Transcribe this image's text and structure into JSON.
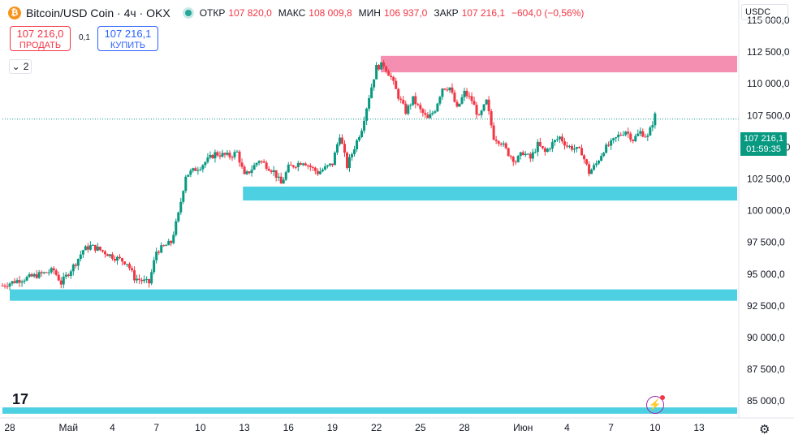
{
  "header": {
    "symbol_title": "Bitcoin/USD Coin · 4ч · OKX",
    "logo_glyph": "₿",
    "ohlc": [
      {
        "label": "ОТКР",
        "value": "107 820,0"
      },
      {
        "label": "МАКС",
        "value": "108 009,8"
      },
      {
        "label": "МИН",
        "value": "106 937,0"
      },
      {
        "label": "ЗАКР",
        "value": "107 216,1"
      },
      {
        "label": "",
        "value": "−604,0 (−0,56%)"
      }
    ]
  },
  "trade": {
    "sell_price": "107 216,0",
    "sell_label": "ПРОДАТЬ",
    "spread": "0,1",
    "buy_price": "107 216,1",
    "buy_label": "КУПИТЬ"
  },
  "indicators_toggle": "2",
  "currency": "USDC",
  "last_price_tag": {
    "price": "107 216,1",
    "countdown": "01:59:35"
  },
  "colors": {
    "up": "#089981",
    "down": "#f23645",
    "support_zone": "#4dd0e1",
    "resistance_zone": "#f48fb1"
  },
  "icons": [
    "bitcoin-logo-icon",
    "chevron-down-icon",
    "tradingview-logo-icon",
    "lightning-icon",
    "gear-icon"
  ],
  "chart_data": {
    "type": "candlestick",
    "interval": "4ч",
    "y_axis": {
      "ticks": [
        115000,
        112500,
        110000,
        107500,
        105000,
        102500,
        100000,
        97500,
        95000,
        92500,
        90000,
        87500,
        85000
      ],
      "tick_labels": [
        "115 000,0",
        "112 500,0",
        "110 000,0",
        "107 500,0",
        "105 000,0",
        "102 500,0",
        "100 000,0",
        "97 500,0",
        "95 000,0",
        "92 500,0",
        "90 000,0",
        "87 500,0",
        "85 000,0"
      ],
      "ylim": [
        83800,
        116600
      ]
    },
    "x_axis": {
      "tick_labels": [
        "28",
        "Май",
        "4",
        "7",
        "10",
        "13",
        "16",
        "19",
        "22",
        "25",
        "28",
        "Июн",
        "4",
        "7",
        "10",
        "13"
      ],
      "tick_days": [
        -3,
        1,
        4,
        7,
        10,
        13,
        16,
        19,
        22,
        25,
        28,
        32,
        35,
        38,
        41,
        44
      ],
      "day_origin": "2025-05-01",
      "xlim": [
        -3.5,
        46.6
      ]
    },
    "zones": [
      {
        "name": "resistance",
        "from_day": 22.3,
        "y_low": 110900,
        "y_high": 112200,
        "color": "#f48fb1"
      },
      {
        "name": "support",
        "from_day": 12.9,
        "y_low": 100800,
        "y_high": 101900,
        "color": "#4dd0e1"
      },
      {
        "name": "support",
        "from_day": -3.0,
        "y_low": 92900,
        "y_high": 93800,
        "color": "#4dd0e1"
      },
      {
        "name": "support",
        "from_day": -3.5,
        "y_low": 84000,
        "y_high": 84500,
        "color": "#4dd0e1"
      }
    ],
    "last_price": 107216.1,
    "price_path": [
      {
        "day": -3.5,
        "price": 94100
      },
      {
        "day": -2.5,
        "price": 94500
      },
      {
        "day": -1.5,
        "price": 94800
      },
      {
        "day": 0.0,
        "price": 95300
      },
      {
        "day": 0.5,
        "price": 94300
      },
      {
        "day": 1.5,
        "price": 95900
      },
      {
        "day": 2.0,
        "price": 96900
      },
      {
        "day": 2.5,
        "price": 97200
      },
      {
        "day": 3.0,
        "price": 97000
      },
      {
        "day": 4.0,
        "price": 96400
      },
      {
        "day": 5.0,
        "price": 95900
      },
      {
        "day": 5.5,
        "price": 94700
      },
      {
        "day": 6.5,
        "price": 94300
      },
      {
        "day": 7.0,
        "price": 96800
      },
      {
        "day": 8.0,
        "price": 97500
      },
      {
        "day": 8.5,
        "price": 99700
      },
      {
        "day": 9.0,
        "price": 102800
      },
      {
        "day": 10.0,
        "price": 103500
      },
      {
        "day": 11.0,
        "price": 104500
      },
      {
        "day": 12.0,
        "price": 104300
      },
      {
        "day": 12.5,
        "price": 104600
      },
      {
        "day": 13.0,
        "price": 102700
      },
      {
        "day": 13.5,
        "price": 103300
      },
      {
        "day": 14.0,
        "price": 104000
      },
      {
        "day": 15.0,
        "price": 103100
      },
      {
        "day": 15.5,
        "price": 102100
      },
      {
        "day": 16.0,
        "price": 103400
      },
      {
        "day": 17.0,
        "price": 103900
      },
      {
        "day": 18.0,
        "price": 103000
      },
      {
        "day": 19.0,
        "price": 103700
      },
      {
        "day": 19.5,
        "price": 106000
      },
      {
        "day": 20.0,
        "price": 103500
      },
      {
        "day": 21.0,
        "price": 106500
      },
      {
        "day": 21.5,
        "price": 109000
      },
      {
        "day": 22.0,
        "price": 111300
      },
      {
        "day": 22.5,
        "price": 111500
      },
      {
        "day": 23.0,
        "price": 110500
      },
      {
        "day": 23.5,
        "price": 109000
      },
      {
        "day": 24.0,
        "price": 107800
      },
      {
        "day": 24.5,
        "price": 108800
      },
      {
        "day": 25.0,
        "price": 107900
      },
      {
        "day": 25.5,
        "price": 107200
      },
      {
        "day": 26.0,
        "price": 108000
      },
      {
        "day": 26.5,
        "price": 109700
      },
      {
        "day": 27.0,
        "price": 109700
      },
      {
        "day": 27.5,
        "price": 108000
      },
      {
        "day": 28.0,
        "price": 109300
      },
      {
        "day": 28.5,
        "price": 108700
      },
      {
        "day": 29.0,
        "price": 107300
      },
      {
        "day": 29.5,
        "price": 108600
      },
      {
        "day": 30.0,
        "price": 105800
      },
      {
        "day": 30.5,
        "price": 105400
      },
      {
        "day": 31.0,
        "price": 104500
      },
      {
        "day": 31.5,
        "price": 103900
      },
      {
        "day": 32.0,
        "price": 104600
      },
      {
        "day": 32.5,
        "price": 104100
      },
      {
        "day": 33.0,
        "price": 105200
      },
      {
        "day": 33.5,
        "price": 104600
      },
      {
        "day": 34.0,
        "price": 105300
      },
      {
        "day": 34.5,
        "price": 105800
      },
      {
        "day": 35.0,
        "price": 105100
      },
      {
        "day": 35.5,
        "price": 104900
      },
      {
        "day": 36.0,
        "price": 104600
      },
      {
        "day": 36.5,
        "price": 103000
      },
      {
        "day": 37.0,
        "price": 103700
      },
      {
        "day": 37.5,
        "price": 104800
      },
      {
        "day": 38.0,
        "price": 105300
      },
      {
        "day": 38.5,
        "price": 105900
      },
      {
        "day": 39.0,
        "price": 106300
      },
      {
        "day": 39.5,
        "price": 105600
      },
      {
        "day": 40.0,
        "price": 106200
      },
      {
        "day": 40.5,
        "price": 105800
      },
      {
        "day": 41.0,
        "price": 107500
      }
    ]
  }
}
